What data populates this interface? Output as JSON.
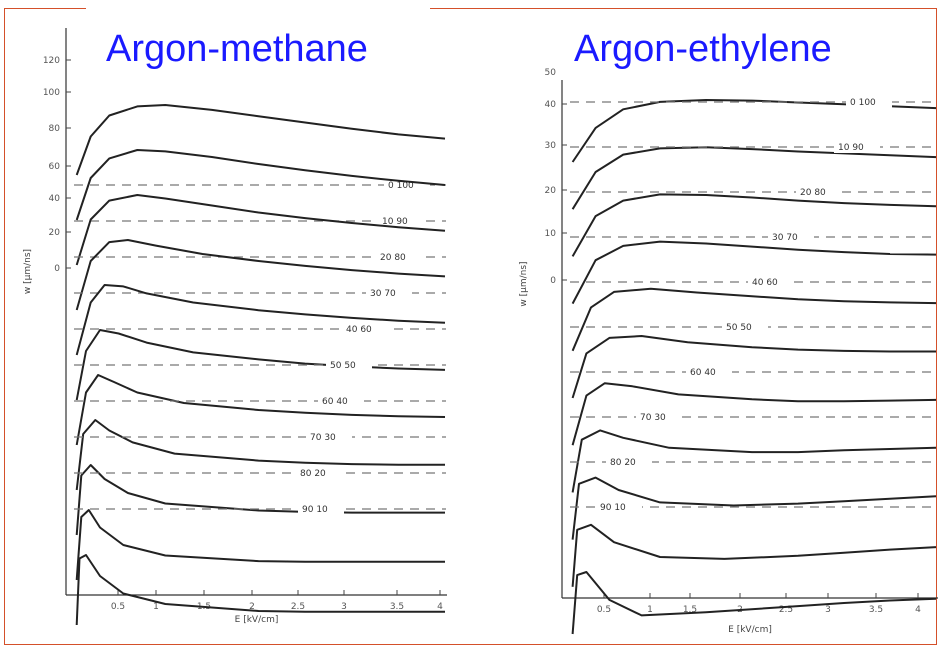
{
  "chart_data": [
    {
      "type": "line",
      "title": "Argon-methane",
      "xlabel": "E [kV/cm]",
      "ylabel": "w [μm/ns]",
      "xlim": [
        0,
        4
      ],
      "x_ticks": [
        "0.5",
        "1",
        "1.5",
        "2",
        "2.5",
        "3",
        "3.5",
        "4"
      ],
      "y_ticks": [
        "120",
        "100",
        "80",
        "60",
        "40",
        "20",
        "0"
      ],
      "series": [
        {
          "name": "0 100",
          "x": [
            0.05,
            0.2,
            0.4,
            0.7,
            1.0,
            1.5,
            2.0,
            2.5,
            3.0,
            3.5,
            4.0
          ],
          "y": [
            0.0,
            0.55,
            0.85,
            0.98,
            1.0,
            0.93,
            0.84,
            0.75,
            0.66,
            0.58,
            0.52
          ]
        },
        {
          "name": "10 90",
          "x": [
            0.05,
            0.2,
            0.4,
            0.7,
            1.0,
            1.5,
            2.0,
            2.5,
            3.0,
            3.5,
            4.0
          ],
          "y": [
            0.0,
            0.6,
            0.88,
            1.0,
            0.98,
            0.9,
            0.8,
            0.71,
            0.63,
            0.56,
            0.5
          ]
        },
        {
          "name": "20 80",
          "x": [
            0.05,
            0.2,
            0.4,
            0.7,
            1.0,
            1.5,
            2.0,
            2.5,
            3.0,
            3.5,
            4.0
          ],
          "y": [
            0.0,
            0.65,
            0.92,
            1.0,
            0.95,
            0.85,
            0.75,
            0.67,
            0.6,
            0.54,
            0.49
          ]
        },
        {
          "name": "30 70",
          "x": [
            0.05,
            0.2,
            0.4,
            0.6,
            0.9,
            1.4,
            2.0,
            2.5,
            3.0,
            3.5,
            4.0
          ],
          "y": [
            0.0,
            0.7,
            0.97,
            1.0,
            0.92,
            0.8,
            0.7,
            0.63,
            0.57,
            0.52,
            0.48
          ]
        },
        {
          "name": "40 60",
          "x": [
            0.05,
            0.2,
            0.35,
            0.55,
            0.8,
            1.3,
            2.0,
            2.5,
            3.0,
            3.5,
            4.0
          ],
          "y": [
            0.0,
            0.75,
            1.0,
            0.98,
            0.88,
            0.75,
            0.64,
            0.58,
            0.53,
            0.49,
            0.46
          ]
        },
        {
          "name": "50 50",
          "x": [
            0.05,
            0.15,
            0.3,
            0.5,
            0.8,
            1.3,
            2.0,
            2.5,
            3.0,
            3.5,
            4.0
          ],
          "y": [
            0.0,
            0.7,
            1.0,
            0.95,
            0.82,
            0.68,
            0.58,
            0.52,
            0.48,
            0.45,
            0.43
          ]
        },
        {
          "name": "60 40",
          "x": [
            0.05,
            0.15,
            0.28,
            0.45,
            0.7,
            1.2,
            2.0,
            2.5,
            3.0,
            3.5,
            4.0
          ],
          "y": [
            0.0,
            0.75,
            1.0,
            0.9,
            0.75,
            0.6,
            0.5,
            0.46,
            0.43,
            0.41,
            0.4
          ]
        },
        {
          "name": "70 30",
          "x": [
            0.05,
            0.12,
            0.25,
            0.4,
            0.65,
            1.1,
            2.0,
            2.5,
            3.0,
            3.5,
            4.0
          ],
          "y": [
            0.0,
            0.8,
            1.0,
            0.85,
            0.68,
            0.52,
            0.42,
            0.39,
            0.37,
            0.36,
            0.36
          ]
        },
        {
          "name": "80 20",
          "x": [
            0.05,
            0.1,
            0.2,
            0.35,
            0.6,
            1.0,
            2.0,
            2.5,
            3.0,
            3.5,
            4.0
          ],
          "y": [
            0.0,
            0.85,
            1.0,
            0.8,
            0.6,
            0.45,
            0.35,
            0.33,
            0.32,
            0.32,
            0.32
          ]
        },
        {
          "name": "90 10",
          "x": [
            0.05,
            0.1,
            0.18,
            0.3,
            0.55,
            1.0,
            2.0,
            2.5,
            3.0,
            3.5,
            4.0
          ],
          "y": [
            0.0,
            0.9,
            1.0,
            0.75,
            0.5,
            0.35,
            0.27,
            0.26,
            0.26,
            0.26,
            0.26
          ]
        },
        {
          "name": "",
          "x": [
            0.05,
            0.08,
            0.15,
            0.3,
            0.55,
            1.0,
            2.0,
            2.5,
            3.0,
            3.5,
            4.0
          ],
          "y": [
            0.0,
            0.95,
            1.0,
            0.7,
            0.45,
            0.3,
            0.2,
            0.19,
            0.19,
            0.19,
            0.19
          ]
        }
      ]
    },
    {
      "type": "line",
      "title": "Argon-ethylene",
      "xlabel": "E [kV/cm]",
      "ylabel": "w [μm/ns]",
      "xlim": [
        0,
        4
      ],
      "x_ticks": [
        "0.5",
        "1",
        "1.5",
        "2",
        "2.5",
        "3",
        "3.5",
        "4"
      ],
      "y_ticks": [
        "50",
        "40",
        "30",
        "20",
        "10",
        "0"
      ],
      "series": [
        {
          "name": "0 100",
          "x": [
            0.05,
            0.3,
            0.6,
            1.0,
            1.5,
            2.0,
            2.5,
            3.0,
            3.5,
            4.0
          ],
          "y": [
            0.0,
            0.55,
            0.85,
            0.97,
            1.0,
            0.99,
            0.96,
            0.93,
            0.9,
            0.87
          ]
        },
        {
          "name": "10 90",
          "x": [
            0.05,
            0.3,
            0.6,
            1.0,
            1.5,
            2.0,
            2.5,
            3.0,
            3.5,
            4.0
          ],
          "y": [
            0.0,
            0.6,
            0.88,
            0.98,
            1.0,
            0.97,
            0.93,
            0.9,
            0.87,
            0.84
          ]
        },
        {
          "name": "20 80",
          "x": [
            0.05,
            0.3,
            0.6,
            1.0,
            1.5,
            2.0,
            2.5,
            3.0,
            3.5,
            4.0
          ],
          "y": [
            0.0,
            0.65,
            0.9,
            1.0,
            0.99,
            0.95,
            0.9,
            0.86,
            0.83,
            0.81
          ]
        },
        {
          "name": "30 70",
          "x": [
            0.05,
            0.3,
            0.6,
            1.0,
            1.5,
            2.0,
            2.5,
            3.0,
            3.5,
            4.0
          ],
          "y": [
            0.0,
            0.7,
            0.93,
            1.0,
            0.97,
            0.92,
            0.87,
            0.83,
            0.8,
            0.79
          ]
        },
        {
          "name": "40 60",
          "x": [
            0.05,
            0.25,
            0.5,
            0.9,
            1.4,
            2.0,
            2.5,
            3.0,
            3.5,
            4.0
          ],
          "y": [
            0.0,
            0.7,
            0.95,
            1.0,
            0.94,
            0.88,
            0.83,
            0.8,
            0.78,
            0.77
          ]
        },
        {
          "name": "50 50",
          "x": [
            0.05,
            0.2,
            0.45,
            0.8,
            1.3,
            2.0,
            2.5,
            3.0,
            3.5,
            4.0
          ],
          "y": [
            0.0,
            0.72,
            0.97,
            1.0,
            0.9,
            0.82,
            0.78,
            0.76,
            0.75,
            0.75
          ]
        },
        {
          "name": "60 40",
          "x": [
            0.05,
            0.2,
            0.4,
            0.7,
            1.2,
            2.0,
            2.5,
            3.0,
            3.5,
            4.0
          ],
          "y": [
            0.0,
            0.8,
            1.0,
            0.95,
            0.82,
            0.74,
            0.71,
            0.71,
            0.72,
            0.73
          ]
        },
        {
          "name": "70 30",
          "x": [
            0.05,
            0.15,
            0.35,
            0.6,
            1.1,
            2.0,
            2.5,
            3.0,
            3.5,
            4.0
          ],
          "y": [
            0.0,
            0.85,
            1.0,
            0.88,
            0.72,
            0.65,
            0.65,
            0.68,
            0.7,
            0.72
          ]
        },
        {
          "name": "80 20",
          "x": [
            0.05,
            0.12,
            0.3,
            0.55,
            1.0,
            1.8,
            2.5,
            3.0,
            3.5,
            4.0
          ],
          "y": [
            0.0,
            0.9,
            1.0,
            0.8,
            0.6,
            0.55,
            0.58,
            0.62,
            0.66,
            0.7
          ]
        },
        {
          "name": "90 10",
          "x": [
            0.05,
            0.1,
            0.25,
            0.5,
            1.0,
            1.7,
            2.5,
            3.0,
            3.5,
            4.0
          ],
          "y": [
            0.0,
            0.92,
            1.0,
            0.72,
            0.48,
            0.45,
            0.5,
            0.55,
            0.6,
            0.64
          ]
        },
        {
          "name": "",
          "x": [
            0.05,
            0.1,
            0.2,
            0.45,
            0.8,
            1.5,
            2.5,
            3.0,
            3.5,
            4.0
          ],
          "y": [
            0.0,
            0.95,
            1.0,
            0.55,
            0.3,
            0.35,
            0.45,
            0.5,
            0.54,
            0.57
          ]
        }
      ]
    }
  ]
}
